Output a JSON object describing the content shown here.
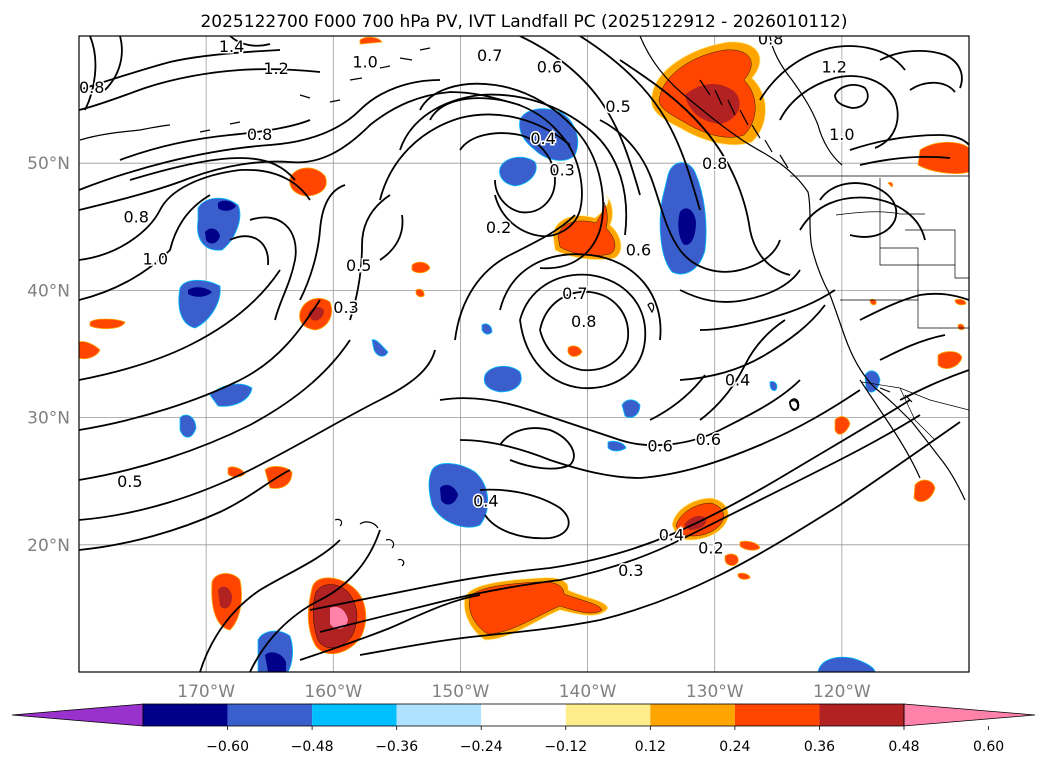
{
  "title": "2025122700 F000 700 hPa PV, IVT Landfall PC (2025122912 - 2026010112)",
  "map": {
    "lat_ticks": [
      {
        "lat": 50,
        "label": "50°N"
      },
      {
        "lat": 40,
        "label": "40°N"
      },
      {
        "lat": 30,
        "label": "30°N"
      },
      {
        "lat": 20,
        "label": "20°N"
      }
    ],
    "lon_ticks": [
      {
        "lon": -170,
        "label": "170°W"
      },
      {
        "lon": -160,
        "label": "160°W"
      },
      {
        "lon": -150,
        "label": "150°W"
      },
      {
        "lon": -140,
        "label": "140°W"
      },
      {
        "lon": -130,
        "label": "130°W"
      },
      {
        "lon": -120,
        "label": "120°W"
      }
    ],
    "extent": {
      "lon_min": -180,
      "lon_max": -110,
      "lat_min": 10,
      "lat_max": 60
    }
  },
  "colorbar": {
    "colors": [
      "#9932cc",
      "#00008b",
      "#3a5fcd",
      "#00bfff",
      "#b0e2ff",
      "#ffffff",
      "#ffec8b",
      "#ffa500",
      "#ff4500",
      "#b22222",
      "#ff82ab"
    ],
    "tick_labels": [
      "−0.60",
      "−0.48",
      "−0.36",
      "−0.24",
      "−0.12",
      "0.12",
      "0.24",
      "0.36",
      "0.48",
      "0.60"
    ]
  },
  "contour_labels": [
    {
      "text": "1.4",
      "lon": -168.0,
      "lat": 59.2
    },
    {
      "text": "1.0",
      "lon": -157.5,
      "lat": 58.0
    },
    {
      "text": "1.2",
      "lon": -164.5,
      "lat": 57.5
    },
    {
      "text": "0.8",
      "lon": -165.8,
      "lat": 52.3
    },
    {
      "text": "0.8",
      "lon": -175.5,
      "lat": 45.8
    },
    {
      "text": "1.0",
      "lon": -174.0,
      "lat": 42.5
    },
    {
      "text": "0.5",
      "lon": -158.0,
      "lat": 42.0
    },
    {
      "text": "0.3",
      "lon": -159.0,
      "lat": 38.7
    },
    {
      "text": "0.4",
      "lon": -143.5,
      "lat": 52.0
    },
    {
      "text": "0.3",
      "lon": -142.0,
      "lat": 49.5
    },
    {
      "text": "0.2",
      "lon": -147.0,
      "lat": 45.0
    },
    {
      "text": "0.7",
      "lon": -141.0,
      "lat": 39.8
    },
    {
      "text": "0.8",
      "lon": -140.3,
      "lat": 37.6
    },
    {
      "text": "0.6",
      "lon": -136.0,
      "lat": 43.2
    },
    {
      "text": "0.6",
      "lon": -143.0,
      "lat": 57.6
    },
    {
      "text": "0.7",
      "lon": -147.7,
      "lat": 58.5
    },
    {
      "text": "0.5",
      "lon": -137.6,
      "lat": 54.5
    },
    {
      "text": "0.8",
      "lon": -130.0,
      "lat": 50.0
    },
    {
      "text": "0.8",
      "lon": -125.6,
      "lat": 59.8
    },
    {
      "text": "1.2",
      "lon": -120.6,
      "lat": 57.6
    },
    {
      "text": "1.0",
      "lon": -120.0,
      "lat": 52.3
    },
    {
      "text": "0.4",
      "lon": -128.2,
      "lat": 33.0
    },
    {
      "text": "0.6",
      "lon": -134.3,
      "lat": 27.8
    },
    {
      "text": "0.6",
      "lon": -130.5,
      "lat": 28.3
    },
    {
      "text": "0.4",
      "lon": -148.0,
      "lat": 23.5
    },
    {
      "text": "0.4",
      "lon": -133.4,
      "lat": 20.8
    },
    {
      "text": "0.2",
      "lon": -130.3,
      "lat": 19.8
    },
    {
      "text": "0.3",
      "lon": -136.6,
      "lat": 18.0
    },
    {
      "text": "0.5",
      "lon": -176.0,
      "lat": 25.0
    },
    {
      "text": "0.8",
      "lon": -179.0,
      "lat": 56.0
    }
  ]
}
